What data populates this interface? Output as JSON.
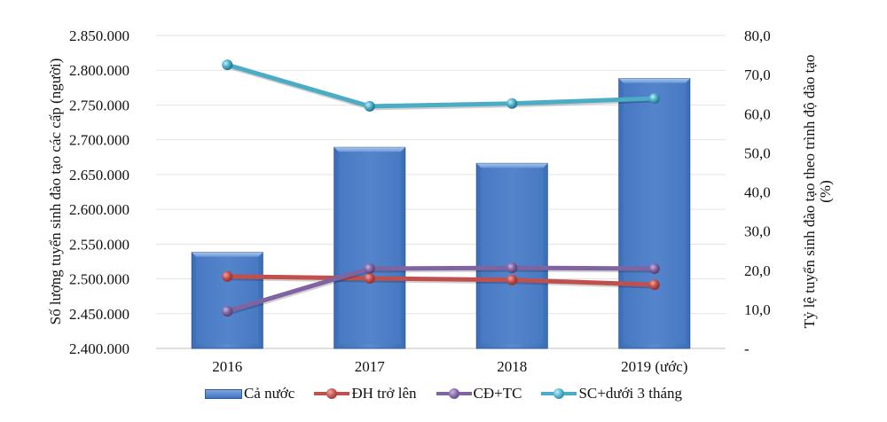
{
  "chart_data": {
    "type": "bar+line",
    "categories": [
      "2016",
      "2017",
      "2018",
      "2019 (ước)"
    ],
    "left_axis": {
      "title": "Số lượng tuyển sinh đào tạo các cấp (người)",
      "ylim": [
        2400000,
        2850000
      ],
      "ticks": [
        "2.400.000",
        "2.450.000",
        "2.500.000",
        "2.550.000",
        "2.600.000",
        "2.650.000",
        "2.700.000",
        "2.750.000",
        "2.800.000",
        "2.850.000"
      ],
      "tick_values": [
        2400000,
        2450000,
        2500000,
        2550000,
        2600000,
        2650000,
        2700000,
        2750000,
        2800000,
        2850000
      ]
    },
    "right_axis": {
      "title_line1": "Tỷ lệ tuyển sinh đào tạo theo trình độ đào tạo",
      "title_line2": "(%)",
      "ylim": [
        0,
        80
      ],
      "ticks": [
        "-",
        "10,0",
        "20,0",
        "30,0",
        "40,0",
        "50,0",
        "60,0",
        "70,0",
        "80,0"
      ],
      "tick_values": [
        0,
        10,
        20,
        30,
        40,
        50,
        60,
        70,
        80
      ]
    },
    "grid": true,
    "legend_position": "bottom",
    "series": [
      {
        "name": "Cả nước",
        "type": "bar",
        "axis": "left",
        "color": "#4a7cc4",
        "values": [
          2538000,
          2689000,
          2666000,
          2788000
        ]
      },
      {
        "name": "ĐH trở lên",
        "type": "line",
        "axis": "right",
        "color": "#c0504d",
        "values": [
          18.4,
          17.9,
          17.5,
          16.3
        ]
      },
      {
        "name": "CĐ+TC",
        "type": "line",
        "axis": "right",
        "color": "#8064a2",
        "values": [
          9.5,
          20.4,
          20.6,
          20.4
        ]
      },
      {
        "name": "SC+dưới 3 tháng",
        "type": "line",
        "axis": "right",
        "color": "#4bacc6",
        "values": [
          72.5,
          61.9,
          62.6,
          63.9
        ]
      }
    ]
  }
}
